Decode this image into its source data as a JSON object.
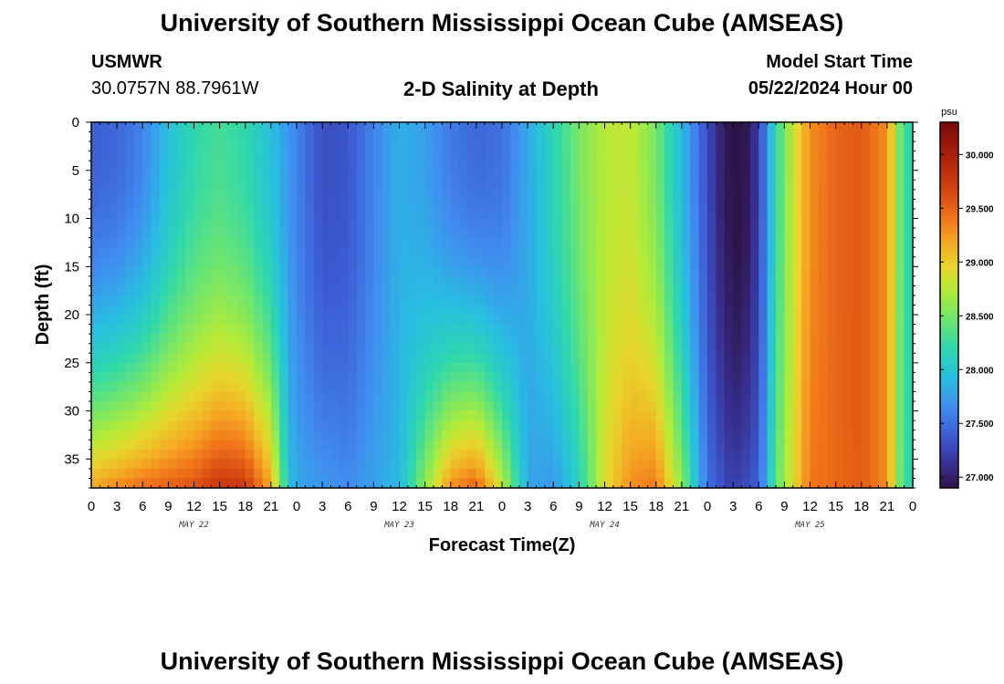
{
  "page": {
    "title_top": "University of Southern Mississippi Ocean Cube (AMSEAS)",
    "title_bottom": "University of Southern Mississippi Ocean Cube (AMSEAS)"
  },
  "header": {
    "station": "USMWR",
    "coords": "30.0757N  88.7961W",
    "product": "2-D Salinity at Depth",
    "model_start_label": "Model Start Time",
    "model_start_value": "05/22/2024 Hour 00"
  },
  "chart_data": {
    "type": "heatmap",
    "xlabel": "Forecast Time(Z)",
    "ylabel": "Depth (ft)",
    "ylim": [
      0,
      38
    ],
    "xlim_hours": [
      0,
      96
    ],
    "y_ticks": [
      0,
      5,
      10,
      15,
      20,
      25,
      30,
      35
    ],
    "x_tick_labels": [
      "0",
      "3",
      "6",
      "9",
      "12",
      "15",
      "18",
      "21",
      "0",
      "3",
      "6",
      "9",
      "12",
      "15",
      "18",
      "21",
      "0",
      "3",
      "6",
      "9",
      "12",
      "15",
      "18",
      "21",
      "0",
      "3",
      "6",
      "9",
      "12",
      "15",
      "18",
      "21",
      "0"
    ],
    "day_labels": [
      "MAY 22",
      "MAY 23",
      "MAY 24",
      "MAY 25"
    ],
    "colorbar": {
      "unit": "psu",
      "min": 26.9,
      "max": 30.3,
      "ticks": [
        "27.000",
        "27.500",
        "28.000",
        "28.500",
        "29.000",
        "29.500",
        "30.000"
      ]
    },
    "surface_salinity_by_hour": [
      [
        0,
        27.4
      ],
      [
        3,
        27.45
      ],
      [
        6,
        27.6
      ],
      [
        9,
        27.95
      ],
      [
        12,
        28.2
      ],
      [
        15,
        28.3
      ],
      [
        18,
        28.2
      ],
      [
        21,
        27.95
      ],
      [
        24,
        27.6
      ],
      [
        27,
        27.3
      ],
      [
        30,
        27.35
      ],
      [
        33,
        27.6
      ],
      [
        36,
        27.85
      ],
      [
        39,
        27.75
      ],
      [
        42,
        27.55
      ],
      [
        45,
        27.45
      ],
      [
        48,
        27.5
      ],
      [
        51,
        27.8
      ],
      [
        54,
        28.15
      ],
      [
        57,
        28.5
      ],
      [
        60,
        28.75
      ],
      [
        63,
        28.8
      ],
      [
        66,
        28.5
      ],
      [
        69,
        27.9
      ],
      [
        72,
        27.3
      ],
      [
        74,
        26.95
      ],
      [
        76,
        26.85
      ],
      [
        78,
        27.2
      ],
      [
        80,
        28.2
      ],
      [
        82,
        28.8
      ],
      [
        84,
        29.3
      ],
      [
        87,
        29.5
      ],
      [
        90,
        29.55
      ],
      [
        93,
        29.3
      ],
      [
        95,
        28.2
      ]
    ],
    "bottom_salinity_by_hour": [
      [
        0,
        29.2
      ],
      [
        6,
        29.45
      ],
      [
        12,
        29.6
      ],
      [
        15,
        29.8
      ],
      [
        18,
        29.75
      ],
      [
        21,
        29.2
      ],
      [
        23,
        28.0
      ],
      [
        24,
        27.8
      ],
      [
        30,
        27.65
      ],
      [
        36,
        27.9
      ],
      [
        39,
        28.6
      ],
      [
        42,
        29.3
      ],
      [
        45,
        29.5
      ],
      [
        48,
        28.8
      ],
      [
        51,
        27.8
      ],
      [
        54,
        27.7
      ],
      [
        57,
        28.1
      ],
      [
        60,
        28.9
      ],
      [
        63,
        29.3
      ],
      [
        66,
        29.4
      ],
      [
        69,
        28.6
      ],
      [
        72,
        27.5
      ],
      [
        75,
        27.2
      ],
      [
        78,
        27.4
      ],
      [
        80,
        28.4
      ],
      [
        84,
        29.4
      ],
      [
        90,
        29.55
      ],
      [
        93,
        29.3
      ],
      [
        95,
        28.2
      ]
    ]
  }
}
